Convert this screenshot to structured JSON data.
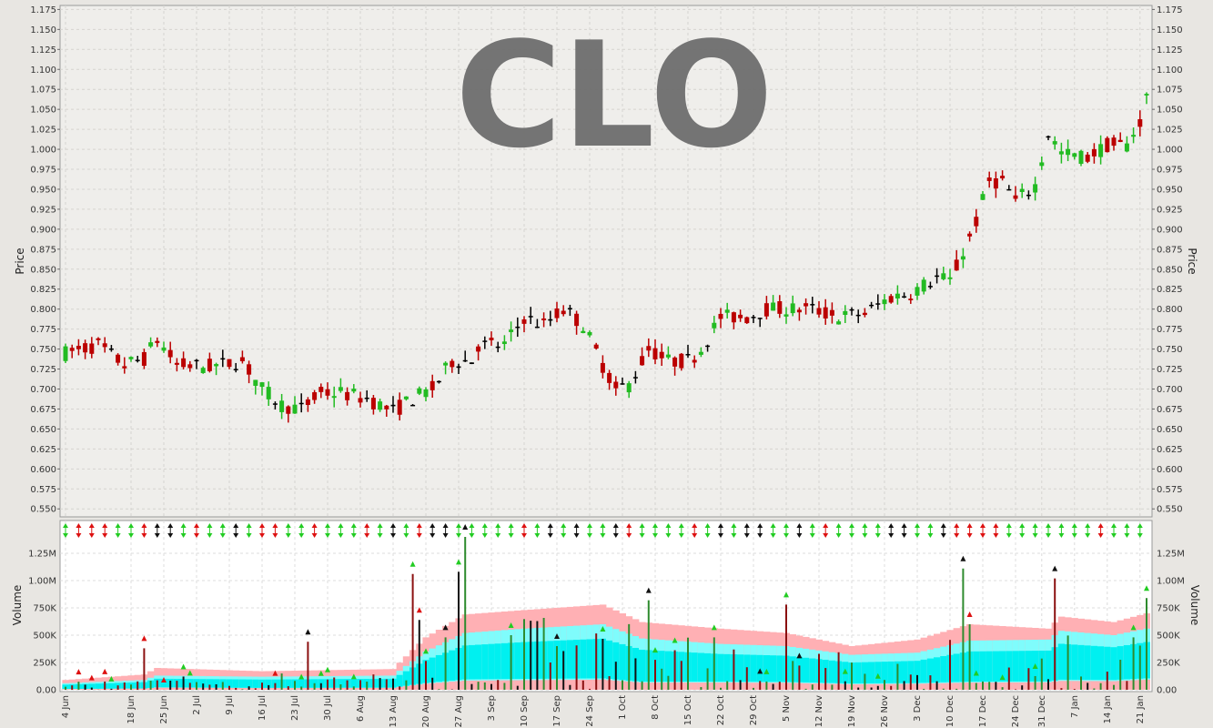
{
  "chart_data": {
    "type": "ohlc_with_volume",
    "watermark": "CLO",
    "price_panel": {
      "ylabel": "Price",
      "ylim": [
        0.54,
        1.18
      ],
      "yticks": [
        0.55,
        0.575,
        0.6,
        0.625,
        0.65,
        0.675,
        0.7,
        0.725,
        0.75,
        0.775,
        0.8,
        0.825,
        0.85,
        0.875,
        0.9,
        0.925,
        0.95,
        0.975,
        1.0,
        1.025,
        1.05,
        1.075,
        1.1,
        1.125,
        1.15,
        1.175
      ],
      "grid": true
    },
    "volume_panel": {
      "ylabel": "Volume",
      "ylim": [
        0,
        1400000
      ],
      "yticks": [
        0,
        250000,
        500000,
        750000,
        1000000,
        1250000
      ],
      "ytick_labels": [
        "0.00",
        "250K",
        "500K",
        "750K",
        "1.00M",
        "1.25M"
      ],
      "grid": true
    },
    "x_tick_labels": [
      "4 Jun",
      "18 Jun",
      "25 Jun",
      "2 Jul",
      "9 Jul",
      "16 Jul",
      "23 Jul",
      "30 Jul",
      "6 Aug",
      "13 Aug",
      "20 Aug",
      "27 Aug",
      "3 Sep",
      "10 Sep",
      "17 Sep",
      "24 Sep",
      "1 Oct",
      "8 Oct",
      "15 Oct",
      "22 Oct",
      "29 Oct",
      "5 Nov",
      "12 Nov",
      "19 Nov",
      "26 Nov",
      "3 Dec",
      "10 Dec",
      "17 Dec",
      "24 Dec",
      "31 Dec",
      "7 Jan",
      "14 Jan",
      "21 Jan"
    ],
    "x_tick_index": [
      0,
      10,
      15,
      20,
      25,
      30,
      35,
      40,
      45,
      50,
      55,
      60,
      65,
      70,
      75,
      80,
      85,
      90,
      95,
      100,
      105,
      110,
      115,
      120,
      125,
      130,
      135,
      140,
      145,
      149,
      154,
      159,
      164
    ],
    "colors": {
      "up": "#22bb22",
      "down": "#bb0000",
      "flat": "#000000",
      "band_outer": "#ffb0b4",
      "band_mid": "#7ffcfc",
      "band_inner": "#00f0f0"
    },
    "price_path": [
      [
        0,
        0.745
      ],
      [
        5,
        0.755
      ],
      [
        9,
        0.73
      ],
      [
        12,
        0.738
      ],
      [
        14,
        0.762
      ],
      [
        17,
        0.73
      ],
      [
        22,
        0.728
      ],
      [
        27,
        0.735
      ],
      [
        30,
        0.7
      ],
      [
        33,
        0.68
      ],
      [
        36,
        0.675
      ],
      [
        39,
        0.695
      ],
      [
        42,
        0.695
      ],
      [
        46,
        0.688
      ],
      [
        50,
        0.672
      ],
      [
        53,
        0.688
      ],
      [
        56,
        0.7
      ],
      [
        59,
        0.735
      ],
      [
        62,
        0.735
      ],
      [
        63,
        0.755
      ],
      [
        67,
        0.755
      ],
      [
        70,
        0.79
      ],
      [
        73,
        0.78
      ],
      [
        76,
        0.8
      ],
      [
        79,
        0.78
      ],
      [
        82,
        0.73
      ],
      [
        84,
        0.7
      ],
      [
        86,
        0.705
      ],
      [
        89,
        0.75
      ],
      [
        92,
        0.735
      ],
      [
        95,
        0.735
      ],
      [
        97,
        0.75
      ],
      [
        100,
        0.79
      ],
      [
        104,
        0.79
      ],
      [
        107,
        0.8
      ],
      [
        110,
        0.8
      ],
      [
        114,
        0.8
      ],
      [
        118,
        0.79
      ],
      [
        122,
        0.795
      ],
      [
        126,
        0.815
      ],
      [
        129,
        0.82
      ],
      [
        133,
        0.84
      ],
      [
        135,
        0.835
      ],
      [
        137,
        0.87
      ],
      [
        139,
        0.91
      ],
      [
        141,
        0.96
      ],
      [
        143,
        0.96
      ],
      [
        145,
        0.935
      ],
      [
        148,
        0.955
      ],
      [
        150,
        1.02
      ],
      [
        152,
        0.995
      ],
      [
        156,
        0.99
      ],
      [
        159,
        1.005
      ],
      [
        162,
        1.005
      ],
      [
        164,
        1.035
      ],
      [
        165,
        1.065
      ]
    ],
    "volume_peaks": [
      [
        12,
        380000
      ],
      [
        37,
        440000
      ],
      [
        53,
        1060000
      ],
      [
        54,
        640000
      ],
      [
        58,
        480000
      ],
      [
        60,
        1080000
      ],
      [
        61,
        1400000
      ],
      [
        68,
        500000
      ],
      [
        75,
        400000
      ],
      [
        89,
        820000
      ],
      [
        99,
        480000
      ],
      [
        110,
        780000
      ],
      [
        137,
        1110000
      ],
      [
        138,
        600000
      ],
      [
        151,
        1020000
      ],
      [
        163,
        480000
      ],
      [
        165,
        840000
      ]
    ],
    "band_profile": [
      [
        0,
        30000,
        60000,
        90000
      ],
      [
        12,
        50000,
        90000,
        140000
      ],
      [
        14,
        90000,
        130000,
        200000
      ],
      [
        30,
        70000,
        120000,
        170000
      ],
      [
        50,
        80000,
        130000,
        190000
      ],
      [
        55,
        250000,
        350000,
        480000
      ],
      [
        61,
        380000,
        520000,
        690000
      ],
      [
        70,
        400000,
        560000,
        730000
      ],
      [
        82,
        420000,
        600000,
        780000
      ],
      [
        88,
        300000,
        470000,
        620000
      ],
      [
        100,
        300000,
        420000,
        560000
      ],
      [
        110,
        290000,
        400000,
        520000
      ],
      [
        120,
        230000,
        320000,
        400000
      ],
      [
        130,
        250000,
        340000,
        460000
      ],
      [
        138,
        300000,
        450000,
        600000
      ],
      [
        150,
        310000,
        460000,
        560000
      ],
      [
        152,
        370000,
        540000,
        670000
      ],
      [
        160,
        360000,
        500000,
        620000
      ],
      [
        165,
        420000,
        560000,
        700000
      ]
    ]
  }
}
